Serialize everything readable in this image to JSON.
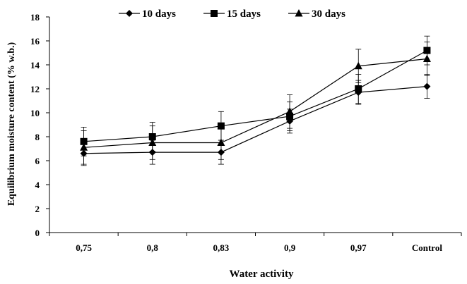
{
  "chart_data": {
    "type": "line",
    "title": "",
    "xlabel": "Water activity",
    "ylabel": "Equilibrium  moisture  content (% w.b.)",
    "categories": [
      "0,75",
      "0,8",
      "0,83",
      "0,9",
      "0,97",
      "Control"
    ],
    "yticks": [
      "0",
      "2",
      "4",
      "6",
      "8",
      "10",
      "12",
      "14",
      "16",
      "18"
    ],
    "ylim": [
      0,
      18
    ],
    "grid": false,
    "legend_position": "top",
    "series": [
      {
        "name": "10 days",
        "marker": "diamond",
        "values": [
          6.6,
          6.7,
          6.7,
          9.3,
          11.7,
          12.2
        ],
        "error": [
          1.0,
          1.0,
          1.0,
          1.0,
          1.0,
          1.0
        ]
      },
      {
        "name": "15 days",
        "marker": "square",
        "values": [
          7.6,
          8.0,
          8.9,
          9.7,
          12.0,
          15.2
        ],
        "error": [
          1.2,
          1.2,
          1.2,
          1.2,
          1.2,
          1.2
        ]
      },
      {
        "name": "30 days",
        "marker": "triangle",
        "values": [
          7.1,
          7.5,
          7.5,
          10.1,
          13.9,
          14.5
        ],
        "error": [
          1.4,
          1.4,
          1.4,
          1.4,
          1.4,
          1.4
        ]
      }
    ]
  }
}
